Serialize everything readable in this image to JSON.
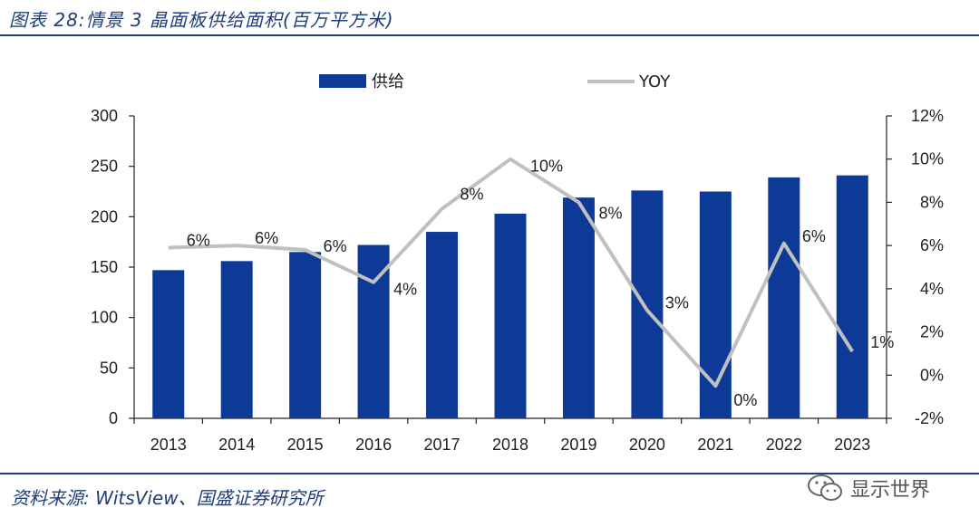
{
  "header": {
    "title": "图表 28:情景 3 晶面板供给面积(百万平方米)"
  },
  "footer": {
    "source": "资料来源: WitsView、国盛证券研究所"
  },
  "watermark": {
    "text": "显示世界",
    "icon": "wechat-icon"
  },
  "colors": {
    "bar": "#0d3a96",
    "line": "#c0c0c0",
    "axis": "#222222",
    "accent": "#1f3f7a"
  },
  "chart_data": {
    "type": "bar",
    "title": "图表 28:情景 3 晶面板供给面积(百万平方米)",
    "categories": [
      "2013",
      "2014",
      "2015",
      "2016",
      "2017",
      "2018",
      "2019",
      "2020",
      "2021",
      "2022",
      "2023"
    ],
    "series": [
      {
        "name": "供给",
        "type": "bar",
        "axis": "left",
        "values": [
          147,
          156,
          165,
          172,
          185,
          203,
          219,
          226,
          225,
          239,
          241
        ]
      },
      {
        "name": "YOY",
        "type": "line",
        "axis": "right",
        "values": [
          5.9,
          6.0,
          5.8,
          4.3,
          7.7,
          10.0,
          8.0,
          3.0,
          -0.5,
          6.1,
          1.1
        ],
        "labels": [
          "6%",
          "6%",
          "6%",
          "4%",
          "8%",
          "10%",
          "8%",
          "3%",
          "0%",
          "6%",
          "1%"
        ]
      }
    ],
    "ylim": [
      0,
      300
    ],
    "yticks": [
      "0",
      "50",
      "100",
      "150",
      "200",
      "250",
      "300"
    ],
    "y2lim": [
      -2,
      12
    ],
    "y2ticks": [
      "-2%",
      "0%",
      "2%",
      "4%",
      "6%",
      "8%",
      "10%",
      "12%"
    ],
    "legend": "top",
    "grid": false
  }
}
